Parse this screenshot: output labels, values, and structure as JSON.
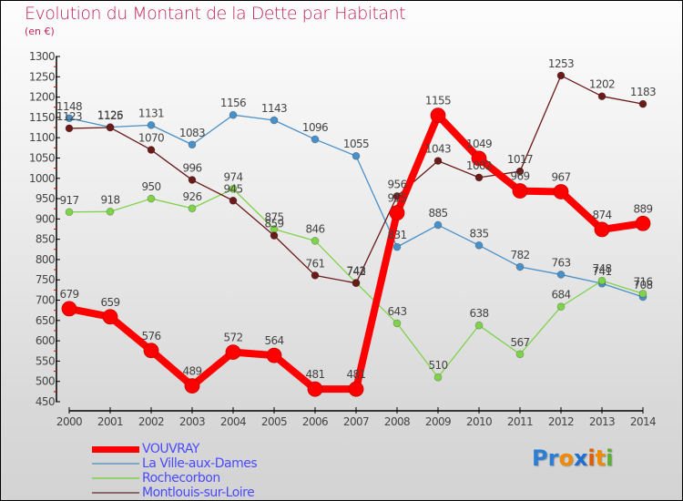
{
  "header": {
    "title": "Evolution du Montant de la Dette par Habitant",
    "subtitle": "(en €)"
  },
  "logo": {
    "text": "Proxiti",
    "letters": [
      {
        "ch": "P",
        "color": "#2a7fd4"
      },
      {
        "ch": "r",
        "color": "#2a7fd4"
      },
      {
        "ch": "o",
        "color": "#f08a00"
      },
      {
        "ch": "x",
        "color": "#1f6fd0"
      },
      {
        "ch": "i",
        "color": "#e05a00"
      },
      {
        "ch": "t",
        "color": "#f08a00"
      },
      {
        "ch": "i",
        "color": "#5ab030"
      }
    ]
  },
  "chart_data": {
    "type": "line",
    "title": "Evolution du Montant de la Dette par Habitant",
    "subtitle": "(en €)",
    "xlabel": "",
    "ylabel": "",
    "x": [
      "2000",
      "2001",
      "2002",
      "2003",
      "2004",
      "2005",
      "2006",
      "2007",
      "2008",
      "2009",
      "2010",
      "2011",
      "2012",
      "2013",
      "2014"
    ],
    "ylim": [
      450,
      1300
    ],
    "yticks": [
      450,
      500,
      550,
      600,
      650,
      700,
      750,
      800,
      850,
      900,
      950,
      1000,
      1050,
      1100,
      1150,
      1200,
      1250,
      1300
    ],
    "grid": false,
    "legend_position": "bottom-left",
    "series": [
      {
        "name": "VOUVRAY",
        "color": "#ff0000",
        "emphasis": true,
        "values": [
          679,
          659,
          576,
          489,
          572,
          564,
          481,
          481,
          915,
          1155,
          1049,
          969,
          967,
          874,
          889
        ]
      },
      {
        "name": "La Ville-aux-Dames",
        "color": "#4a90c8",
        "emphasis": false,
        "values": [
          1148,
          1126,
          1131,
          1083,
          1156,
          1143,
          1096,
          1055,
          831,
          885,
          835,
          782,
          763,
          741,
          708
        ]
      },
      {
        "name": "Rochecorbon",
        "color": "#7fd34a",
        "emphasis": false,
        "values": [
          917,
          918,
          950,
          926,
          974,
          875,
          846,
          743,
          643,
          510,
          638,
          567,
          684,
          748,
          716
        ]
      },
      {
        "name": "Montlouis-sur-Loire",
        "color": "#6b1a1a",
        "emphasis": false,
        "values": [
          1123,
          1125,
          1070,
          996,
          945,
          859,
          761,
          742,
          956,
          1043,
          1002,
          1017,
          1253,
          1202,
          1183
        ]
      }
    ]
  }
}
